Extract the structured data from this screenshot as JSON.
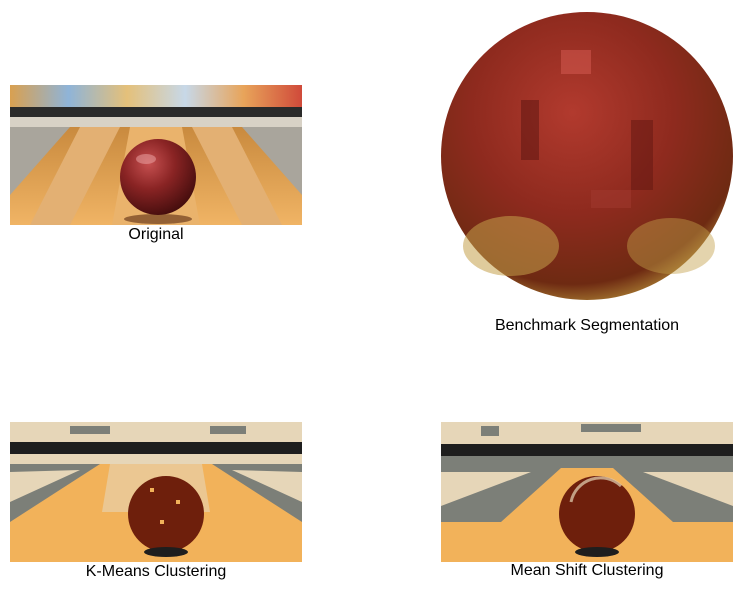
{
  "figure": {
    "panels": [
      {
        "id": "original",
        "caption": "Original"
      },
      {
        "id": "benchmark",
        "caption": "Benchmark Segmentation"
      },
      {
        "id": "kmeans",
        "caption": "K-Means Clustering"
      },
      {
        "id": "meanshift",
        "caption": "Mean Shift Clustering"
      }
    ]
  },
  "palette": {
    "lane_wood": "#E9A456",
    "lane_light": "#F2C27E",
    "ball_red": "#7B1E1E",
    "ball_dark": "#4A0E0E",
    "gutter_gray": "#8F8C84",
    "cluster_orange": "#F2B25A",
    "cluster_beige": "#E6D6B8",
    "cluster_gray": "#7C7F78",
    "cluster_brown": "#6E1F0C",
    "cluster_black": "#1E1E1E"
  }
}
